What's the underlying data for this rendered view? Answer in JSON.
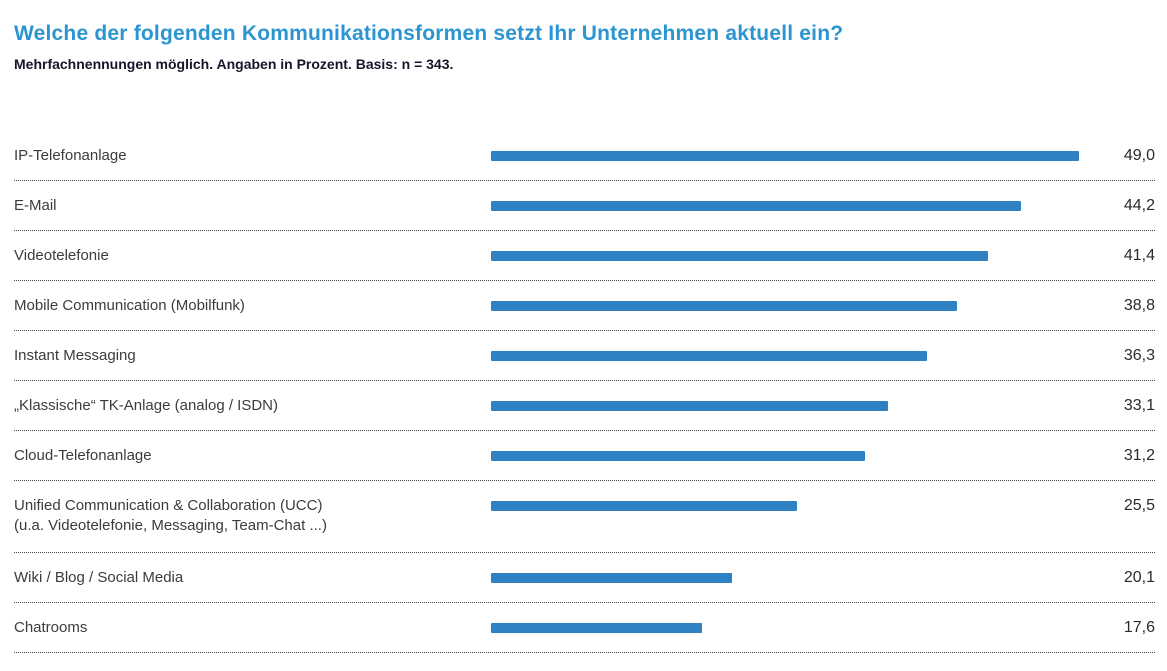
{
  "header": {
    "title": "Welche der folgenden Kommunikationsformen setzt Ihr Unternehmen aktuell ein?",
    "subtitle": "Mehrfachnennungen möglich. Angaben in Prozent. Basis: n = 343."
  },
  "chart_data": {
    "type": "bar",
    "orientation": "horizontal",
    "title": "Welche der folgenden Kommunikationsformen setzt Ihr Unternehmen aktuell ein?",
    "subtitle": "Mehrfachnennungen möglich. Angaben in Prozent. Basis: n = 343.",
    "unit": "Prozent",
    "basis_n": 343,
    "xlim": [
      0,
      49
    ],
    "grid": "dotted row separators only",
    "legend": "none",
    "value_labels_position": "right",
    "categories": [
      "IP-Telefonanlage",
      "E-Mail",
      "Videotelefonie",
      "Mobile Communication (Mobilfunk)",
      "Instant Messaging",
      "„Klassische“ TK-Anlage (analog / ISDN)",
      "Cloud-Telefonanlage",
      "Unified Communication & Collaboration (UCC)",
      "Wiki / Blog / Social Media",
      "Chatrooms"
    ],
    "values": [
      49.0,
      44.2,
      41.4,
      38.8,
      36.3,
      33.1,
      31.2,
      25.5,
      20.1,
      17.6
    ],
    "rows": [
      {
        "label": "IP-Telefonanlage",
        "sublabel": "",
        "value": 49.0,
        "value_label": "49,0"
      },
      {
        "label": "E-Mail",
        "sublabel": "",
        "value": 44.2,
        "value_label": "44,2"
      },
      {
        "label": "Videotelefonie",
        "sublabel": "",
        "value": 41.4,
        "value_label": "41,4"
      },
      {
        "label": "Mobile Communication (Mobilfunk)",
        "sublabel": "",
        "value": 38.8,
        "value_label": "38,8"
      },
      {
        "label": "Instant Messaging",
        "sublabel": "",
        "value": 36.3,
        "value_label": "36,3"
      },
      {
        "label": "„Klassische“ TK-Anlage (analog / ISDN)",
        "sublabel": "",
        "value": 33.1,
        "value_label": "33,1"
      },
      {
        "label": "Cloud-Telefonanlage",
        "sublabel": "",
        "value": 31.2,
        "value_label": "31,2"
      },
      {
        "label": "Unified Communication & Collaboration (UCC)",
        "sublabel": "(u.a. Videotelefonie, Messaging, Team-Chat ...)",
        "value": 25.5,
        "value_label": "25,5"
      },
      {
        "label": "Wiki / Blog / Social Media",
        "sublabel": "",
        "value": 20.1,
        "value_label": "20,1"
      },
      {
        "label": "Chatrooms",
        "sublabel": "",
        "value": 17.6,
        "value_label": "17,6"
      }
    ]
  },
  "colors": {
    "title": "#2b95d2",
    "bar": "#2e82c3",
    "subtitle_text": "#16162a",
    "label_text": "#3c3c3c",
    "value_text": "#2b2b2b",
    "separator": "#444444",
    "background": "#ffffff"
  }
}
